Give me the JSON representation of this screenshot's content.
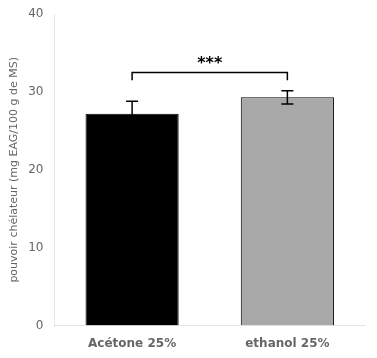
{
  "chart_data": {
    "type": "bar",
    "ylabel": "pouvoir chélateur (mg EAG/100 g de MS)",
    "categories": [
      "Acétone 25%",
      "ethanol 25%"
    ],
    "values": [
      27.2,
      29.3
    ],
    "errors": [
      1.6,
      0.85
    ],
    "colors": [
      "#000000",
      "#a9a9a9"
    ],
    "ylim": [
      0,
      40
    ],
    "yticks": [
      0,
      10,
      20,
      30,
      40
    ],
    "grid": false,
    "annotations": [
      {
        "text": "***",
        "from": "Acétone 25%",
        "to": "ethanol 25%",
        "y": 32.5,
        "end_y": 31.5
      }
    ]
  }
}
